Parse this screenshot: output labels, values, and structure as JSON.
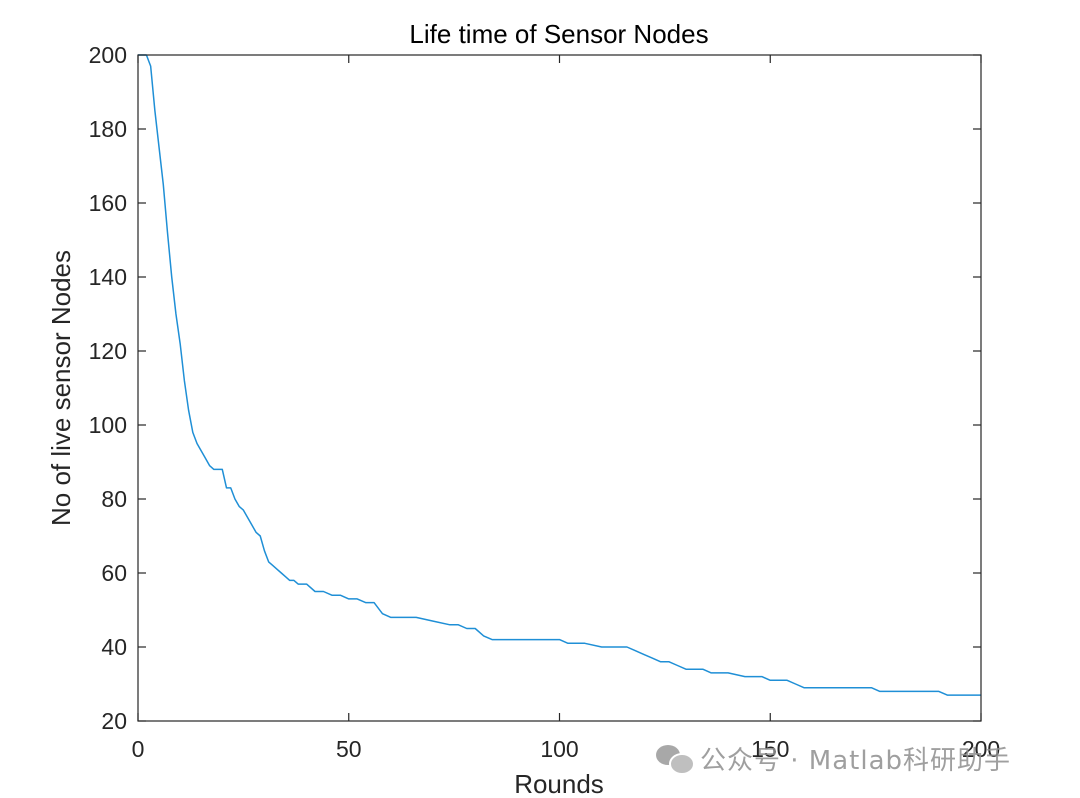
{
  "chart_data": {
    "type": "line",
    "title": "Life time of Sensor Nodes",
    "xlabel": "Rounds",
    "ylabel": "No of live sensor Nodes",
    "xlim": [
      0,
      200
    ],
    "ylim": [
      20,
      200
    ],
    "xticks": [
      0,
      50,
      100,
      150,
      200
    ],
    "yticks": [
      20,
      40,
      60,
      80,
      100,
      120,
      140,
      160,
      180,
      200
    ],
    "grid": false,
    "legend": "none",
    "colors": {
      "line": "#1f8fd6",
      "axes": "#262626"
    },
    "series": [
      {
        "x": [
          0,
          2,
          3,
          4,
          5,
          6,
          7,
          8,
          9,
          10,
          11,
          12,
          13,
          14,
          15,
          16,
          17,
          18,
          19,
          20,
          21,
          22,
          23,
          24,
          25,
          26,
          27,
          28,
          29,
          30,
          31,
          32,
          33,
          34,
          35,
          36,
          37,
          38,
          39,
          40,
          42,
          44,
          46,
          48,
          50,
          52,
          54,
          56,
          58,
          60,
          62,
          64,
          66,
          70,
          74,
          76,
          78,
          80,
          82,
          84,
          86,
          90,
          96,
          100,
          102,
          106,
          110,
          116,
          118,
          120,
          122,
          124,
          126,
          128,
          130,
          134,
          136,
          140,
          144,
          148,
          150,
          152,
          154,
          156,
          158,
          160,
          166,
          170,
          174,
          176,
          182,
          186,
          190,
          192,
          200
        ],
        "y": [
          200,
          200,
          197,
          185,
          175,
          165,
          152,
          140,
          130,
          122,
          112,
          104,
          98,
          95,
          93,
          91,
          89,
          88,
          88,
          88,
          83,
          83,
          80,
          78,
          77,
          75,
          73,
          71,
          70,
          66,
          63,
          62,
          61,
          60,
          59,
          58,
          58,
          57,
          57,
          57,
          55,
          55,
          54,
          54,
          53,
          53,
          52,
          52,
          49,
          48,
          48,
          48,
          48,
          47,
          46,
          46,
          45,
          45,
          43,
          42,
          42,
          42,
          42,
          42,
          41,
          41,
          40,
          40,
          39,
          38,
          37,
          36,
          36,
          35,
          34,
          34,
          33,
          33,
          32,
          32,
          31,
          31,
          31,
          30,
          29,
          29,
          29,
          29,
          29,
          28,
          28,
          28,
          28,
          27,
          27
        ]
      }
    ]
  },
  "watermark": {
    "text": "公众号 · Matlab科研助手",
    "icon": "wechat-icon"
  }
}
